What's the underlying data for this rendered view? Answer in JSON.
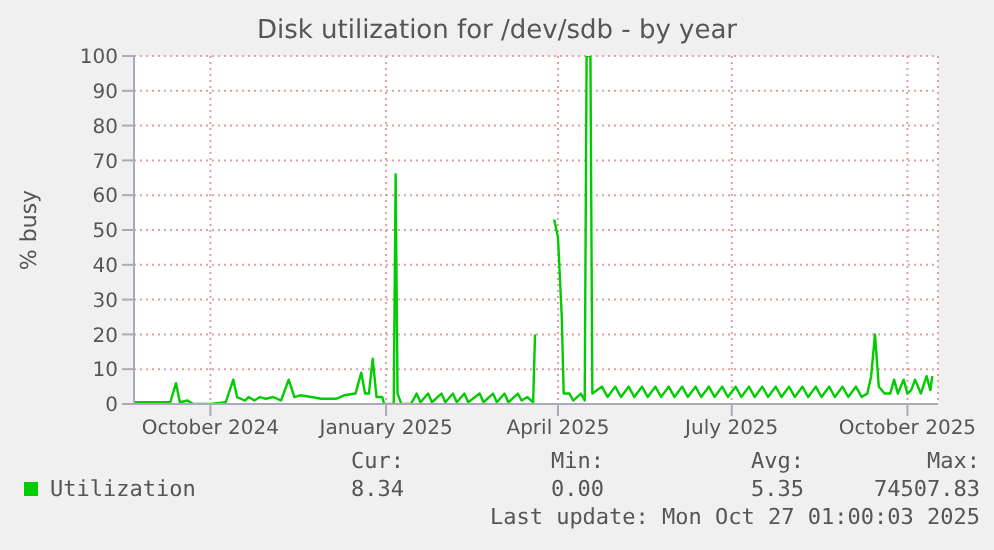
{
  "chart_data": {
    "type": "line",
    "title": "Disk utilization for /dev/sdb - by year",
    "ylabel": "% busy",
    "xlim": [
      "2024-08-22",
      "2025-10-17"
    ],
    "xticks": [
      {
        "value": "2024-10-01",
        "label": "October 2024"
      },
      {
        "value": "2025-01-01",
        "label": "January 2025"
      },
      {
        "value": "2025-04-01",
        "label": "April 2025"
      },
      {
        "value": "2025-07-01",
        "label": "July 2025"
      },
      {
        "value": "2025-10-01",
        "label": "October 2025"
      }
    ],
    "ylim": [
      0,
      100
    ],
    "yticks": [
      0,
      10,
      20,
      30,
      40,
      50,
      60,
      70,
      80,
      90,
      100
    ],
    "grid": true,
    "legend": "bottom",
    "marker": "none",
    "line_style": "solid",
    "series": [
      {
        "name": "Utilization",
        "color": "#00cc00",
        "x": [
          "2024-08-22",
          "2024-09-10",
          "2024-09-13",
          "2024-09-15",
          "2024-09-19",
          "2024-09-22",
          "2024-10-01",
          "2024-10-09",
          "2024-10-13",
          "2024-10-15",
          "2024-10-19",
          "2024-10-21",
          "2024-10-24",
          "2024-10-27",
          "2024-10-30",
          "2024-11-03",
          "2024-11-07",
          "2024-11-11",
          "2024-11-14",
          "2024-11-17",
          "2024-11-23",
          "2024-11-28",
          "2024-12-06",
          "2024-12-10",
          "2024-12-16",
          "2024-12-19",
          "2024-12-21",
          "2024-12-23",
          "2024-12-25",
          "2024-12-27",
          "2024-12-30",
          "2024-12-31",
          "2025-01-05",
          "2025-01-06",
          "2025-01-07",
          "2025-01-09",
          "2025-01-14",
          "2025-01-17",
          "2025-01-19",
          "2025-01-23",
          "2025-01-25",
          "2025-01-30",
          "2025-02-01",
          "2025-02-05",
          "2025-02-07",
          "2025-02-11",
          "2025-02-13",
          "2025-02-19",
          "2025-02-21",
          "2025-02-26",
          "2025-02-28",
          "2025-03-04",
          "2025-03-06",
          "2025-03-11",
          "2025-03-13",
          "2025-03-16",
          "2025-03-19",
          "2025-03-20",
          "2025-03-24",
          "2025-03-30",
          "2025-04-01",
          "2025-04-03",
          "2025-04-04",
          "2025-04-07",
          "2025-04-09",
          "2025-04-13",
          "2025-04-15",
          "2025-04-16",
          "2025-04-18",
          "2025-04-19",
          "2025-04-24",
          "2025-04-27",
          "2025-05-01",
          "2025-05-04",
          "2025-05-08",
          "2025-05-11",
          "2025-05-15",
          "2025-05-18",
          "2025-05-22",
          "2025-05-25",
          "2025-05-29",
          "2025-06-01",
          "2025-06-05",
          "2025-06-08",
          "2025-06-12",
          "2025-06-15",
          "2025-06-19",
          "2025-06-22",
          "2025-06-26",
          "2025-06-29",
          "2025-07-03",
          "2025-07-06",
          "2025-07-10",
          "2025-07-13",
          "2025-07-17",
          "2025-07-20",
          "2025-07-24",
          "2025-07-27",
          "2025-07-31",
          "2025-08-03",
          "2025-08-07",
          "2025-08-10",
          "2025-08-14",
          "2025-08-17",
          "2025-08-21",
          "2025-08-24",
          "2025-08-28",
          "2025-08-31",
          "2025-09-04",
          "2025-09-07",
          "2025-09-10",
          "2025-09-12",
          "2025-09-14",
          "2025-09-16",
          "2025-09-19",
          "2025-09-22",
          "2025-09-24",
          "2025-09-26",
          "2025-09-29",
          "2025-10-01",
          "2025-10-03",
          "2025-10-05",
          "2025-10-08",
          "2025-10-11",
          "2025-10-13",
          "2025-10-14"
        ],
        "values": [
          0.5,
          0.5,
          6,
          0.5,
          1,
          0,
          0,
          0.5,
          7,
          2,
          1,
          2,
          1,
          2,
          1.5,
          2,
          1,
          7,
          2,
          2.5,
          2,
          1.5,
          1.5,
          2.5,
          3,
          9,
          3,
          3,
          13,
          2,
          2,
          0,
          0,
          66,
          3,
          0,
          0,
          3,
          0.5,
          3,
          0.5,
          3,
          0.5,
          3,
          0.5,
          3,
          0.5,
          3,
          0.5,
          3,
          0.5,
          3,
          0.5,
          3,
          1,
          2,
          0.5,
          20,
          null,
          53,
          48,
          25,
          3,
          3,
          1,
          3,
          1,
          100,
          100,
          3,
          5,
          2,
          5,
          2,
          5,
          2,
          5,
          2,
          5,
          2,
          5,
          2,
          5,
          2,
          5,
          2,
          5,
          2,
          5,
          2,
          5,
          2,
          5,
          2,
          5,
          2,
          5,
          2,
          5,
          2,
          5,
          2,
          5,
          2,
          5,
          2,
          5,
          2,
          5,
          2,
          3,
          8,
          20,
          5,
          3,
          3,
          7,
          3,
          7,
          3,
          4,
          7,
          3,
          8,
          4,
          8
        ]
      }
    ],
    "annotations": [
      "Cur:",
      "Min:",
      "Avg:",
      "Max:",
      "8.34",
      "0.00",
      "5.35",
      "74507.83",
      "Last update: Mon Oct 27 01:00:03 2025"
    ]
  }
}
